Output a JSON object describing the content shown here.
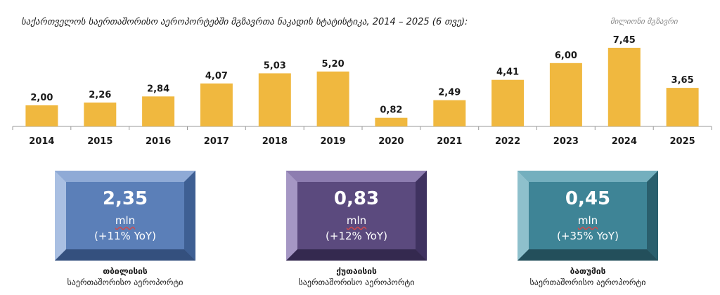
{
  "title": "საქართველოს საერთაშორისო აეროპორტებში მგზავრთა ნაკადის სტატისტიკა, 2014 – 2025 (6 თვე):",
  "unit_label": "მილიონი მგზავრი",
  "colors": {
    "bar": "#F0B83F",
    "card_tbilisi": "#5B7FB8",
    "card_kutaisi": "#5B4A7E",
    "card_batumi": "#3E8496"
  },
  "chart_data": {
    "type": "bar",
    "title": "საქართველოს საერთაშორისო აეროპორტებში მგზავრთა ნაკადის სტატისტიკა, 2014 – 2025 (6 თვე):",
    "ylabel": "მილიონი მგზავრი",
    "categories": [
      "2014",
      "2015",
      "2016",
      "2017",
      "2018",
      "2019",
      "2020",
      "2021",
      "2022",
      "2023",
      "2024",
      "2025"
    ],
    "values": [
      2.0,
      2.26,
      2.84,
      4.07,
      5.03,
      5.2,
      0.82,
      2.49,
      4.41,
      6.0,
      7.45,
      3.65
    ],
    "value_labels": [
      "2,00",
      "2,26",
      "2,84",
      "4,07",
      "5,03",
      "5,20",
      "0,82",
      "2,49",
      "4,41",
      "6,00",
      "7,45",
      "3,65"
    ],
    "ylim": [
      0,
      7.45
    ],
    "grid": false
  },
  "cards": [
    {
      "value": "2,35",
      "unit": "mln",
      "yoy": "(+11% YoY)",
      "caption_line1": "თბილისის",
      "caption_line2": "საერთაშორისო აეროპორტი"
    },
    {
      "value": "0,83",
      "unit": "mln",
      "yoy": "(+12% YoY)",
      "caption_line1": "ქუთაისის",
      "caption_line2": "საერთაშორისო აეროპორტი"
    },
    {
      "value": "0,45",
      "unit": "mln",
      "yoy": "(+35% YoY)",
      "caption_line1": "ბათუმის",
      "caption_line2": "საერთაშორისო აეროპორტი"
    }
  ]
}
